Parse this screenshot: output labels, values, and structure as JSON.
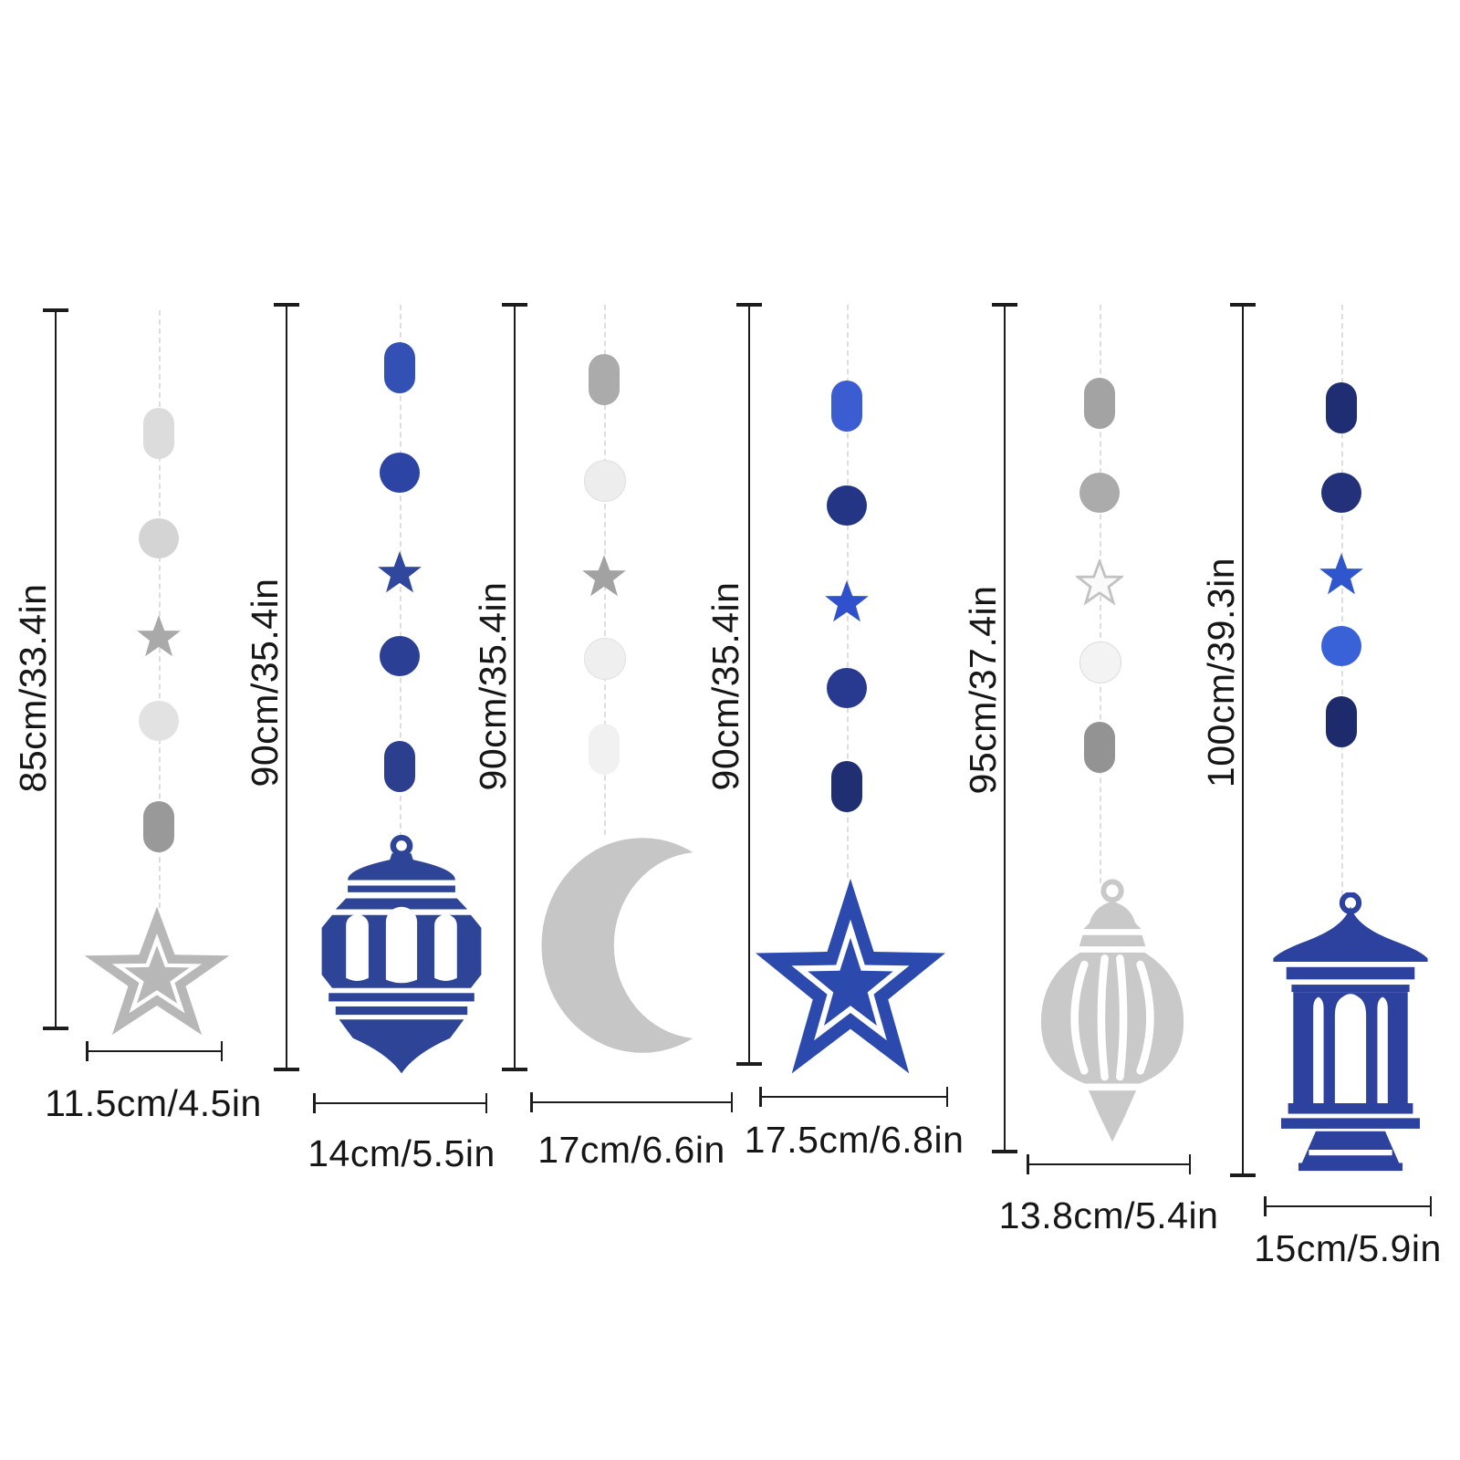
{
  "page": {
    "background": "#ffffff"
  },
  "product_diagram": {
    "measure_color": "#1c1c1c",
    "string_color": "#dedede",
    "garlands": [
      {
        "name": "silver-star-garland",
        "height_label": "85cm/33.4in",
        "width_label": "11.5cm/4.5in",
        "pendant": "layered-star",
        "pendant_color": "#b7b7b7",
        "string_shapes": [
          {
            "shape": "oval",
            "color": "#dcdcdc"
          },
          {
            "shape": "circle",
            "color": "#d4d4d4"
          },
          {
            "shape": "star",
            "color": "#a9a9a9"
          },
          {
            "shape": "circle",
            "color": "#e2e2e2"
          },
          {
            "shape": "oval",
            "color": "#999999"
          }
        ]
      },
      {
        "name": "blue-fanous-lantern-garland",
        "height_label": "90cm/35.4in",
        "width_label": "14cm/5.5in",
        "pendant": "fanous-lantern",
        "pendant_color": "#2e4497",
        "string_shapes": [
          {
            "shape": "oval",
            "color": "#3350b4"
          },
          {
            "shape": "circle",
            "color": "#2c44a4"
          },
          {
            "shape": "star",
            "color": "#31479e"
          },
          {
            "shape": "circle",
            "color": "#2b3f94"
          },
          {
            "shape": "oval",
            "color": "#2c3e8e"
          }
        ]
      },
      {
        "name": "silver-moon-garland",
        "height_label": "90cm/35.4in",
        "width_label": "17cm/6.6in",
        "pendant": "crescent-moon",
        "pendant_color": "#c6c6c6",
        "string_shapes": [
          {
            "shape": "oval",
            "color": "#ababab"
          },
          {
            "shape": "circle",
            "color": "#ededed",
            "stroke": "#e0e0e0"
          },
          {
            "shape": "star",
            "color": "#a2a2a2"
          },
          {
            "shape": "circle",
            "color": "#efefef",
            "stroke": "#e2e2e2"
          },
          {
            "shape": "oval",
            "color": "#f1f1f1"
          }
        ]
      },
      {
        "name": "blue-star-garland",
        "height_label": "90cm/35.4in",
        "width_label": "17.5cm/6.8in",
        "pendant": "layered-star",
        "pendant_color": "#2c4aae",
        "string_shapes": [
          {
            "shape": "oval",
            "color": "#3c5cd2"
          },
          {
            "shape": "circle",
            "color": "#233584"
          },
          {
            "shape": "star",
            "color": "#2f51cc"
          },
          {
            "shape": "circle",
            "color": "#273a8f"
          },
          {
            "shape": "oval",
            "color": "#202e72"
          }
        ]
      },
      {
        "name": "silver-finial-lantern-garland",
        "height_label": "95cm/37.4in",
        "width_label": "13.8cm/5.4in",
        "pendant": "finial-ornament",
        "pendant_color": "#c9c9c9",
        "string_shapes": [
          {
            "shape": "oval",
            "color": "#a3a3a3"
          },
          {
            "shape": "circle",
            "color": "#ababab"
          },
          {
            "shape": "star",
            "color": "#fafafa",
            "stroke": "#c2c2c2"
          },
          {
            "shape": "circle",
            "color": "#f3f3f3",
            "stroke": "#dddddd"
          },
          {
            "shape": "oval",
            "color": "#939393"
          }
        ]
      },
      {
        "name": "blue-pagoda-lantern-garland",
        "height_label": "100cm/39.3in",
        "width_label": "15cm/5.9in",
        "pendant": "pagoda-lantern",
        "pendant_color": "#2c429e",
        "string_shapes": [
          {
            "shape": "oval",
            "color": "#1f2d72"
          },
          {
            "shape": "circle",
            "color": "#223179"
          },
          {
            "shape": "star",
            "color": "#3056ce"
          },
          {
            "shape": "circle",
            "color": "#3a62d8"
          },
          {
            "shape": "oval",
            "color": "#1d2b6c"
          }
        ]
      }
    ]
  }
}
